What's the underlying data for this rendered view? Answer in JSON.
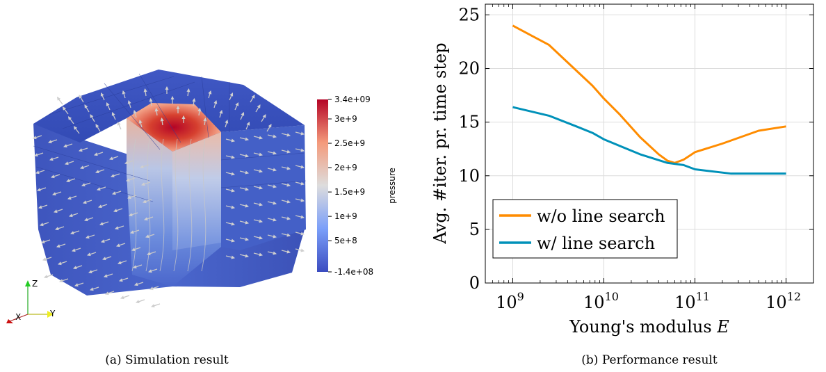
{
  "captions": {
    "a": "(a)  Simulation result",
    "b": "(b) Performance result"
  },
  "simulation": {
    "colorbar_title": "pressure",
    "colorbar_ticks": [
      "3.4e+09",
      "3e+9",
      "2.5e+9",
      "2e+9",
      "1.5e+9",
      "1e+9",
      "5e+8",
      "-1.4e+08"
    ],
    "colorbar_values": [
      3400000000.0,
      3000000000.0,
      2500000000.0,
      2000000000.0,
      1500000000.0,
      1000000000.0,
      500000000.0,
      -140000000.0
    ],
    "colorbar_range": [
      -140000000.0,
      3400000000.0
    ],
    "axes_triad": {
      "z": "Z",
      "x": "X",
      "y": "Y"
    },
    "colors": {
      "low": "#3b4cc0",
      "mid": "#dddddd",
      "high": "#b40426",
      "arrow": "#c8c8c8"
    }
  },
  "chart_data": {
    "type": "line",
    "xscale": "log",
    "xlabel_text": "Young's modulus ",
    "xlabel_var": "E",
    "ylabel": "Avg. #iter. pr. time step",
    "xlim": [
      500000000.0,
      2000000000000.0
    ],
    "ylim": [
      0,
      26
    ],
    "x_tick_base": "10",
    "x_ticks": [
      {
        "value": 1000000000.0,
        "exp": "9"
      },
      {
        "value": 10000000000.0,
        "exp": "10"
      },
      {
        "value": 100000000000.0,
        "exp": "11"
      },
      {
        "value": 1000000000000.0,
        "exp": "12"
      }
    ],
    "y_ticks": [
      0,
      5,
      10,
      15,
      20,
      25
    ],
    "grid": true,
    "legend_position": "bottom-left",
    "series": [
      {
        "name": "w/o line search",
        "color": "#ff8c00",
        "x": [
          1000000000.0,
          2500000000.0,
          5000000000.0,
          7500000000.0,
          10000000000.0,
          15000000000.0,
          25000000000.0,
          40000000000.0,
          50000000000.0,
          60000000000.0,
          75000000000.0,
          85000000000.0,
          100000000000.0,
          200000000000.0,
          500000000000.0,
          1000000000000.0
        ],
        "y": [
          24.0,
          22.2,
          19.8,
          18.4,
          17.2,
          15.7,
          13.6,
          12.0,
          11.4,
          11.2,
          11.5,
          11.8,
          12.2,
          13.0,
          14.2,
          14.6
        ]
      },
      {
        "name": "w/ line search",
        "color": "#0091b9",
        "x": [
          1000000000.0,
          2500000000.0,
          5000000000.0,
          7500000000.0,
          10000000000.0,
          25000000000.0,
          50000000000.0,
          75000000000.0,
          100000000000.0,
          250000000000.0,
          500000000000.0,
          1000000000000.0
        ],
        "y": [
          16.4,
          15.6,
          14.6,
          14.0,
          13.4,
          12.0,
          11.2,
          11.0,
          10.6,
          10.2,
          10.2,
          10.2
        ]
      }
    ]
  }
}
